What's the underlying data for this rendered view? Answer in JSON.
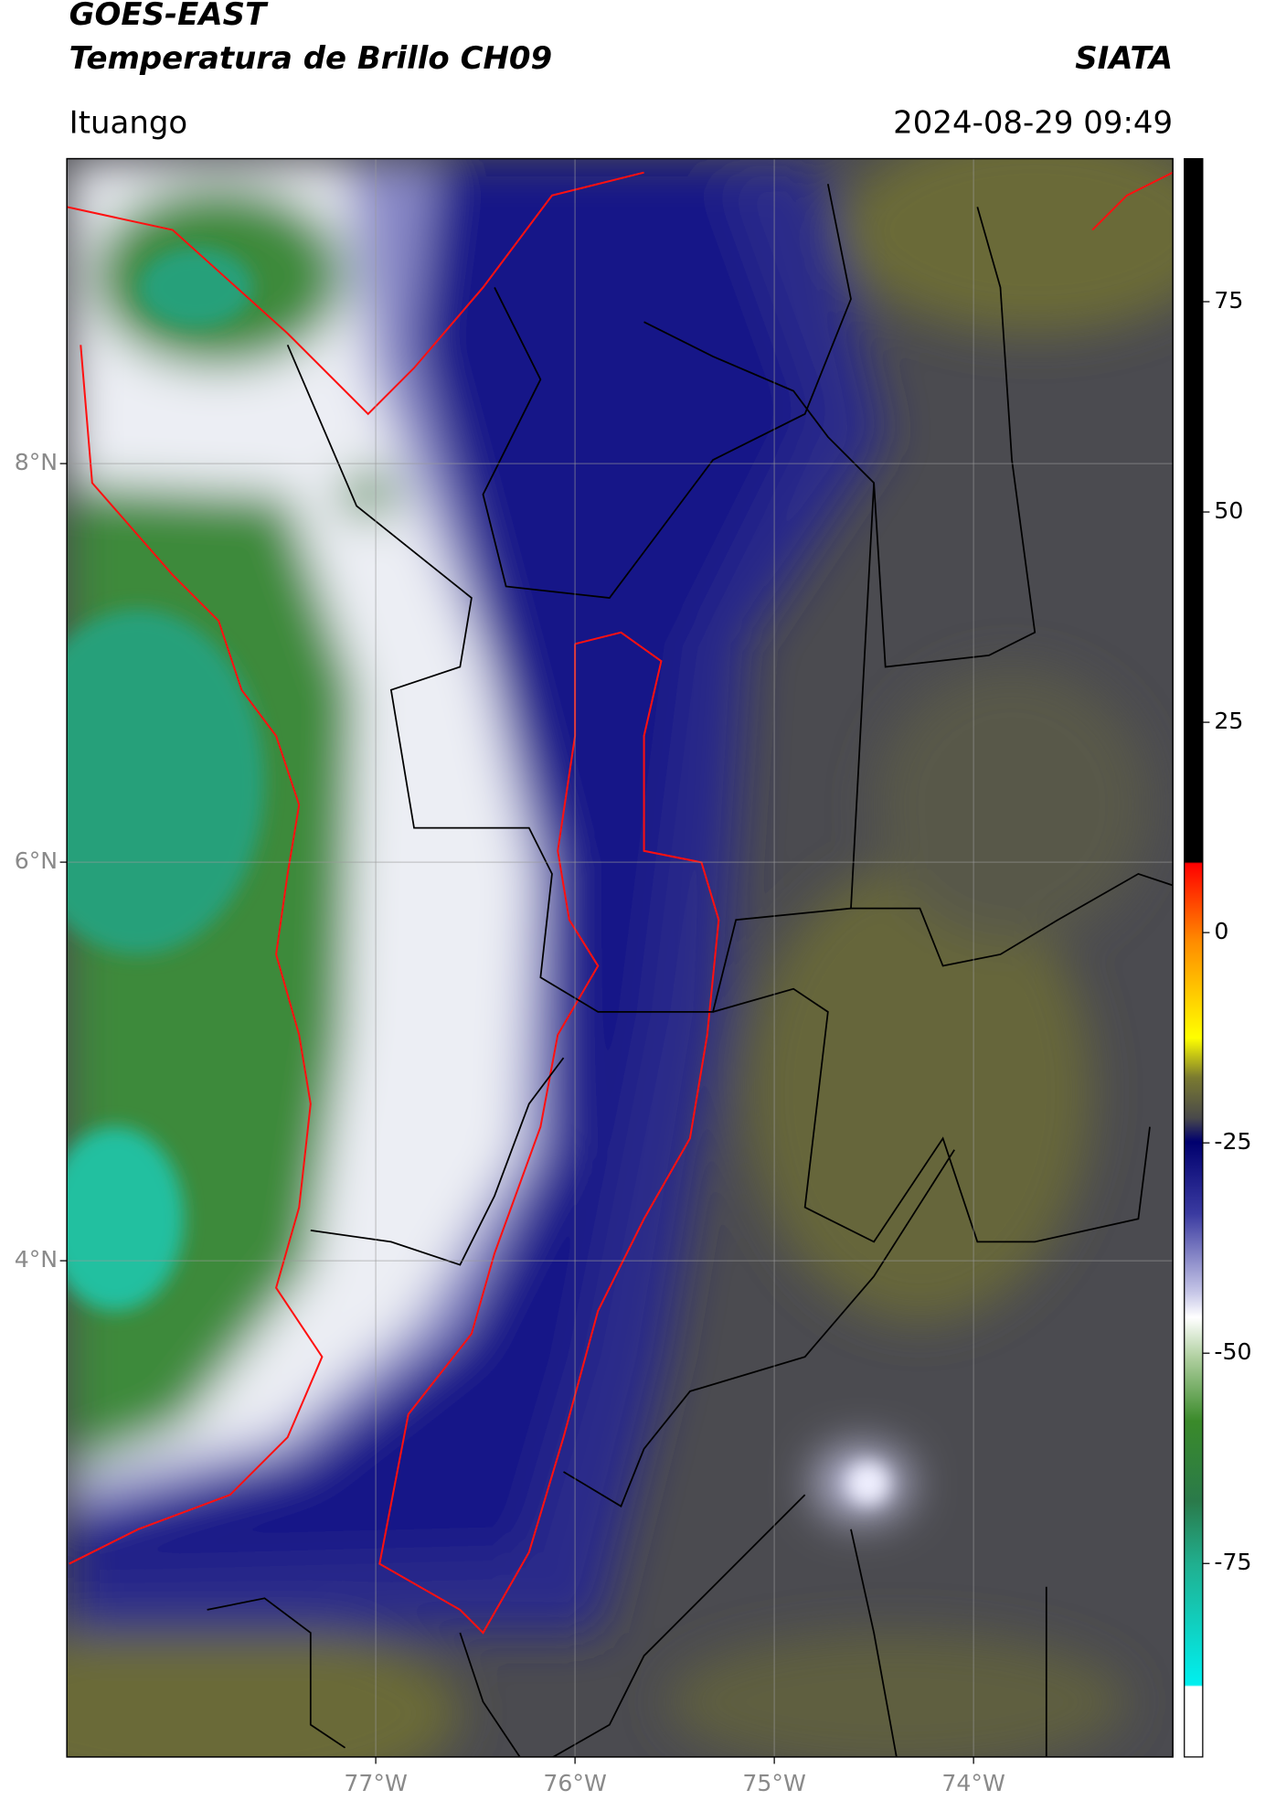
{
  "header": {
    "title": "GOES-EAST",
    "subtitle": "Temperatura de Brillo CH09",
    "brand": "SIATA",
    "location": "Ituango",
    "timestamp": "2024-08-29 09:49"
  },
  "chart_data": {
    "type": "map",
    "xlim": [
      -78.55,
      -73.0
    ],
    "ylim": [
      1.51,
      9.53
    ],
    "xticks": [
      {
        "value": -77,
        "label": "77°W"
      },
      {
        "value": -76,
        "label": "76°W"
      },
      {
        "value": -75,
        "label": "75°W"
      },
      {
        "value": -74,
        "label": "74°W"
      }
    ],
    "yticks": [
      {
        "value": 8,
        "label": "8°N"
      },
      {
        "value": 6,
        "label": "6°N"
      },
      {
        "value": 4,
        "label": "4°N"
      }
    ],
    "grid": true,
    "colorbar": {
      "lim": [
        -98,
        92
      ],
      "ticks": [
        75,
        50,
        25,
        0,
        -25,
        -50,
        -75
      ]
    }
  }
}
